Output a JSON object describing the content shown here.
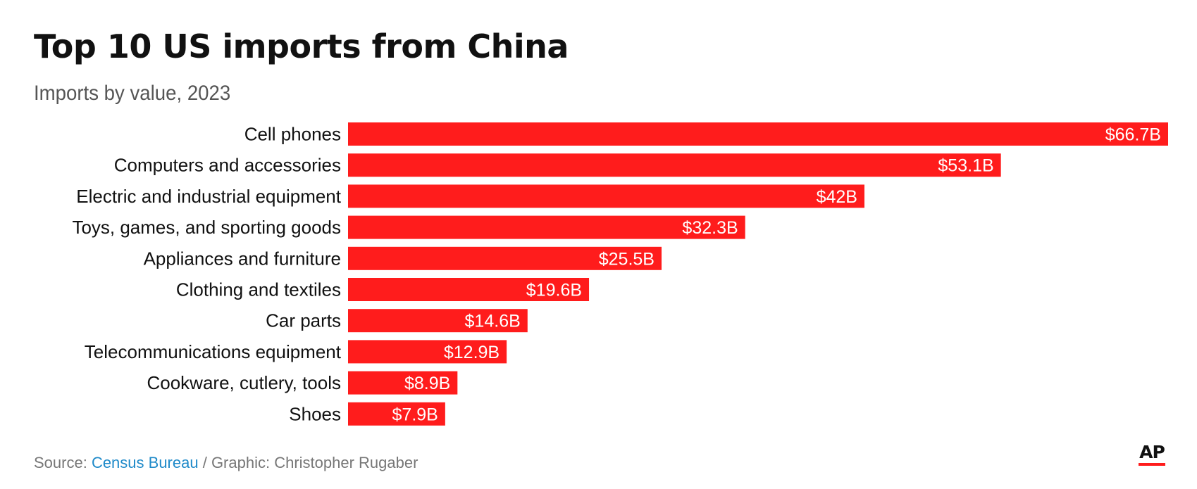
{
  "header": {
    "title": "Top 10 US imports from China",
    "subtitle": "Imports by value, 2023"
  },
  "footer": {
    "source_prefix": "Source: ",
    "source_link": "Census Bureau",
    "separator": " / ",
    "graphic_credit": "Graphic: Christopher Rugaber"
  },
  "logo": {
    "text": "AP",
    "accent_color": "#ff1c1c"
  },
  "colors": {
    "bar": "#ff1c1c",
    "value_text": "#ffffff",
    "link": "#1f8ac9"
  },
  "chart_data": {
    "type": "bar",
    "orientation": "horizontal",
    "title": "Top 10 US imports from China",
    "subtitle": "Imports by value, 2023",
    "categories": [
      "Cell phones",
      "Computers and accessories",
      "Electric and industrial equipment",
      "Toys, games, and sporting goods",
      "Appliances and furniture",
      "Clothing and textiles",
      "Car parts",
      "Telecommunications equipment",
      "Cookware, cutlery, tools",
      "Shoes"
    ],
    "values": [
      66.7,
      53.1,
      42,
      32.3,
      25.5,
      19.6,
      14.6,
      12.9,
      8.9,
      7.9
    ],
    "value_labels": [
      "$66.7B",
      "$53.1B",
      "$42B",
      "$32.3B",
      "$25.5B",
      "$19.6B",
      "$14.6B",
      "$12.9B",
      "$8.9B",
      "$7.9B"
    ],
    "xlim": [
      0,
      66.7
    ],
    "grid": false,
    "legend": "none"
  }
}
